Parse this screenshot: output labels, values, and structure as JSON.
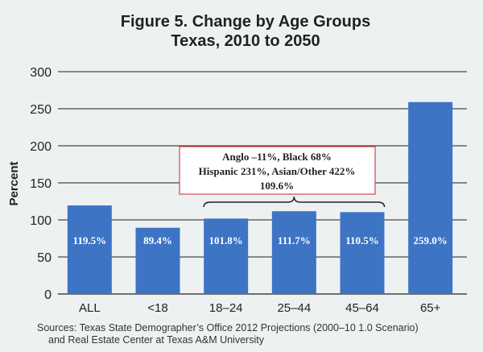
{
  "chart_data": {
    "type": "bar",
    "title": "Figure 5. Change by Age Groups",
    "subtitle": "Texas, 2010 to 2050",
    "ylabel": "Percent",
    "xlabel": "",
    "ylim": [
      0,
      300
    ],
    "yticks": [
      0,
      50,
      100,
      150,
      200,
      250,
      300
    ],
    "grid": true,
    "categories": [
      "ALL",
      "<18",
      "18–24",
      "25–44",
      "45–64",
      "65+"
    ],
    "values": [
      119.5,
      89.4,
      101.8,
      111.7,
      110.5,
      259.0
    ],
    "data_labels": [
      "119.5%",
      "89.4%",
      "101.8%",
      "111.7%",
      "110.5%",
      "259.0%"
    ],
    "bar_color": "#3d74c4",
    "annotation": {
      "lines": [
        "Anglo –11%, Black 68%",
        "Hispanic 231%, Asian/Other 422%",
        "109.6%"
      ],
      "border_color": "#d9434b",
      "spans_categories": [
        "18–24",
        "45–64"
      ]
    },
    "source": [
      "Sources: Texas State Demographer’s Office 2012 Projections (2000–10 1.0 Scenario)",
      "and Real Estate Center at Texas A&M University"
    ]
  }
}
